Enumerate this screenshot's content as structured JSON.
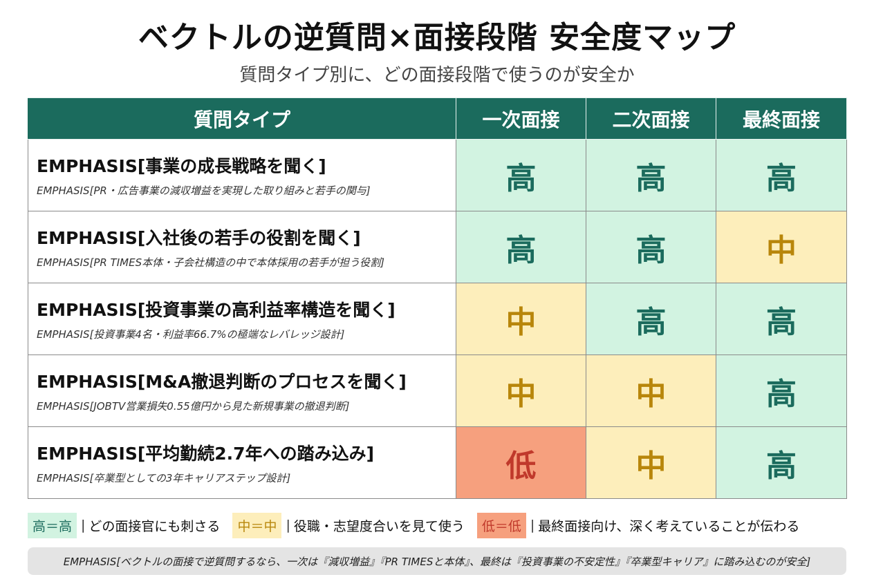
{
  "title": "ベクトルの逆質問×面接段階 安全度マップ",
  "subtitle": "質問タイプ別に、どの面接段階で使うのが安全か",
  "table": {
    "headers": [
      "質問タイプ",
      "一次面接",
      "二次面接",
      "最終面接"
    ],
    "rows": [
      {
        "title": "EMPHASIS[事業の成長戦略を聞く]",
        "sub": "EMPHASIS[PR・広告事業の減収増益を実現した取り組みと若手の関与]",
        "ratings": [
          {
            "label": "高",
            "level": "high"
          },
          {
            "label": "高",
            "level": "high"
          },
          {
            "label": "高",
            "level": "high"
          }
        ]
      },
      {
        "title": "EMPHASIS[入社後の若手の役割を聞く]",
        "sub": "EMPHASIS[PR TIMES本体・子会社構造の中で本体採用の若手が担う役割]",
        "ratings": [
          {
            "label": "高",
            "level": "high"
          },
          {
            "label": "高",
            "level": "high"
          },
          {
            "label": "中",
            "level": "mid"
          }
        ]
      },
      {
        "title": "EMPHASIS[投資事業の高利益率構造を聞く]",
        "sub": "EMPHASIS[投資事業4名・利益率66.7%の極端なレバレッジ設計]",
        "ratings": [
          {
            "label": "中",
            "level": "mid"
          },
          {
            "label": "高",
            "level": "high"
          },
          {
            "label": "高",
            "level": "high"
          }
        ]
      },
      {
        "title": "EMPHASIS[M&A撤退判断のプロセスを聞く]",
        "sub": "EMPHASIS[JOBTV営業損失0.55億円から見た新規事業の撤退判断]",
        "ratings": [
          {
            "label": "中",
            "level": "mid"
          },
          {
            "label": "中",
            "level": "mid"
          },
          {
            "label": "高",
            "level": "high"
          }
        ]
      },
      {
        "title": "EMPHASIS[平均勤続2.7年への踏み込み]",
        "sub": "EMPHASIS[卒業型としての3年キャリアステップ設計]",
        "ratings": [
          {
            "label": "低",
            "level": "low"
          },
          {
            "label": "中",
            "level": "mid"
          },
          {
            "label": "高",
            "level": "high"
          }
        ]
      }
    ]
  },
  "legend": [
    {
      "badge": "高＝高",
      "level": "high",
      "text": "どの面接官にも刺さる"
    },
    {
      "badge": "中＝中",
      "level": "mid",
      "text": "役職・志望度合いを見て使う"
    },
    {
      "badge": "低＝低",
      "level": "low",
      "text": "最終面接向け、深く考えていることが伝わる"
    }
  ],
  "legend_separator": "|",
  "footer": "EMPHASIS[ベクトルの面接で逆質問するなら、一次は『減収増益』『PR TIMESと本体』、最終は『投資事業の不安定性』『卒業型キャリア』に踏み込むのが安全]",
  "colors": {
    "header_bg": "#1b6b5d",
    "high_bg": "#d2f3e1",
    "high_text": "#1b6b5d",
    "mid_bg": "#fdeebb",
    "mid_text": "#b8860b",
    "low_bg": "#f6a07e",
    "low_text": "#c0392b"
  }
}
